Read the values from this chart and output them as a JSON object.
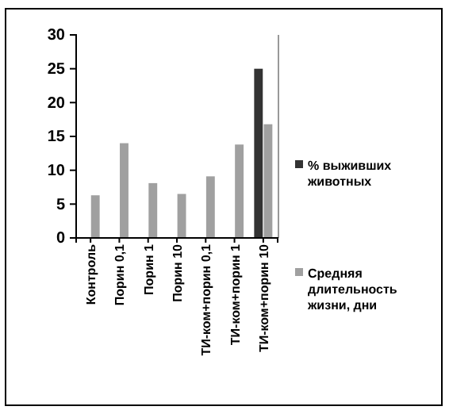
{
  "chart_data": {
    "type": "bar",
    "categories": [
      "Контроль",
      "Порин 0,1",
      "Порин 1",
      "Порин 10",
      "ТИ-ком+порин 0,1",
      "ТИ-ком+порин 1",
      "ТИ-ком+порин 10"
    ],
    "series": [
      {
        "name": "% выживших животных",
        "color": "#333333",
        "values": [
          null,
          null,
          null,
          null,
          null,
          null,
          25
        ]
      },
      {
        "name": "Средняя длительность жизни, дни",
        "color": "#a0a0a0",
        "values": [
          6.3,
          14,
          8.1,
          6.5,
          9.1,
          13.8,
          16.8
        ]
      }
    ],
    "ylim": [
      0,
      30
    ],
    "yticks": [
      0,
      5,
      10,
      15,
      20,
      25,
      30
    ],
    "grid": false,
    "legend": "right"
  }
}
